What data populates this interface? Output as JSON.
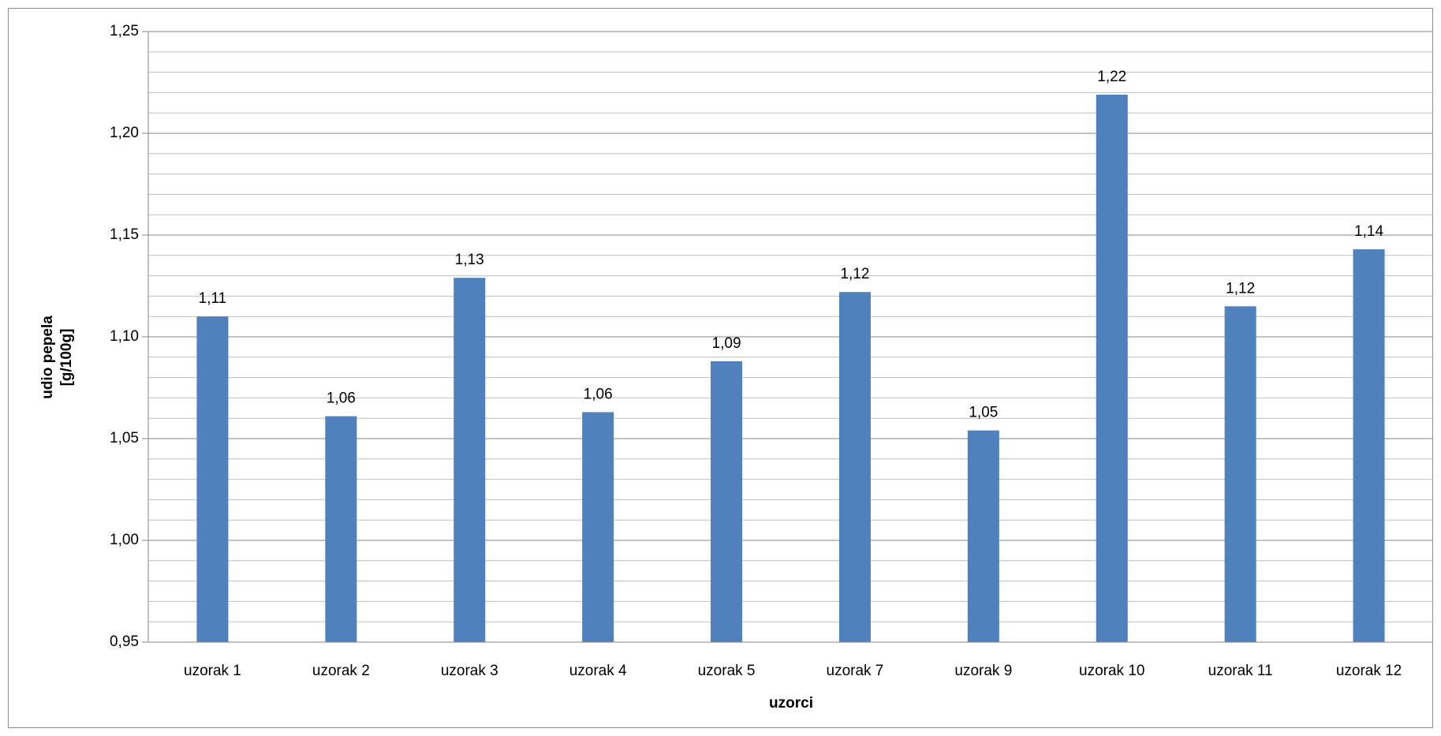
{
  "chart_data": {
    "type": "bar",
    "categories": [
      "uzorak 1",
      "uzorak 2",
      "uzorak 3",
      "uzorak 4",
      "uzorak 5",
      "uzorak 7",
      "uzorak 9",
      "uzorak 10",
      "uzorak 11",
      "uzorak 12"
    ],
    "values": [
      1.11,
      1.061,
      1.129,
      1.063,
      1.088,
      1.122,
      1.054,
      1.219,
      1.115,
      1.143
    ],
    "data_labels": [
      "1,11",
      "1,06",
      "1,13",
      "1,06",
      "1,09",
      "1,12",
      "1,05",
      "1,22",
      "1,12",
      "1,14"
    ],
    "title": "",
    "xlabel": "uzorci",
    "ylabel_lines": [
      "udio pepela",
      "[g/100g]"
    ],
    "ylim": [
      0.95,
      1.25
    ],
    "y_ticks": [
      0.95,
      1.0,
      1.05,
      1.1,
      1.15,
      1.2,
      1.25
    ],
    "y_tick_labels": [
      "0,95",
      "1,00",
      "1,05",
      "1,10",
      "1,15",
      "1,20",
      "1,25"
    ],
    "minor_gridline_step": 0.01,
    "grid": true,
    "legend": "none",
    "bar_color": "#4f81bd",
    "major_grid_color": "#868686",
    "minor_grid_color": "#bfbfbf"
  }
}
